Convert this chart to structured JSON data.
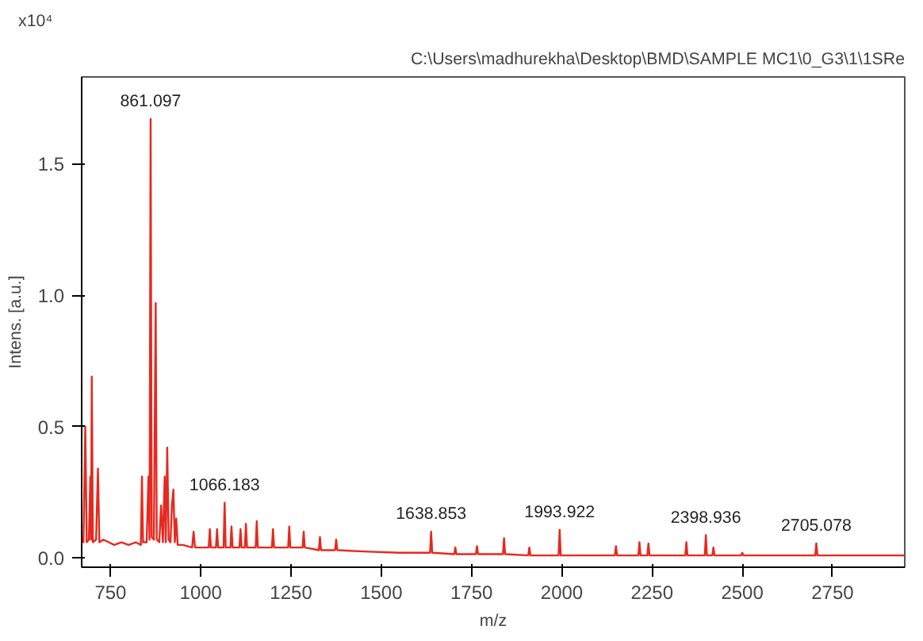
{
  "chart_data": {
    "type": "line",
    "xlabel": "m/z",
    "ylabel": "Intens. [a.u.]",
    "annotations": [
      "C:\\Users\\madhurekha\\Desktop\\BMD\\SAMPLE MC1\\0_G3\\1\\1SRe",
      "x10⁴",
      {
        "text": "861.097",
        "x": 861,
        "y": 1.67
      },
      {
        "text": "1066.183",
        "x": 1066,
        "y": 0.21
      },
      {
        "text": "1638.853",
        "x": 1638,
        "y": 0.1
      },
      {
        "text": "1993.922",
        "x": 1994,
        "y": 0.107
      },
      {
        "text": "2398.936",
        "x": 2399,
        "y": 0.087
      },
      {
        "text": "2705.078",
        "x": 2705,
        "y": 0.056
      }
    ],
    "series": [
      {
        "color": "#e8281e",
        "x": [
          670,
          675,
          680,
          684,
          690,
          694,
          696,
          698,
          701,
          710,
          715,
          719,
          730,
          745,
          760,
          780,
          800,
          820,
          834,
          837,
          840,
          850,
          855,
          858,
          861,
          864,
          870,
          875,
          878,
          885,
          890,
          895,
          900,
          903,
          907,
          911,
          916,
          920,
          924,
          928,
          932,
          936,
          950,
          976,
          980,
          984,
          1000,
          1022,
          1025,
          1028,
          1042,
          1045,
          1048,
          1063,
          1066,
          1069,
          1082,
          1085,
          1088,
          1107,
          1110,
          1113,
          1122,
          1125,
          1128,
          1152,
          1155,
          1158,
          1197,
          1200,
          1203,
          1242,
          1245,
          1248,
          1282,
          1285,
          1288,
          1327,
          1330,
          1333,
          1372,
          1375,
          1378,
          1450,
          1550,
          1635,
          1638,
          1641,
          1702,
          1705,
          1708,
          1762,
          1765,
          1768,
          1837,
          1840,
          1843,
          1907,
          1910,
          1913,
          1991,
          1994,
          1997,
          2147,
          2150,
          2153,
          2212,
          2215,
          2218,
          2237,
          2240,
          2243,
          2342,
          2345,
          2348,
          2396,
          2399,
          2402,
          2417,
          2420,
          2423,
          2497,
          2500,
          2503,
          2600,
          2702,
          2705,
          2708,
          2800,
          2950
        ],
        "values": [
          0.08,
          0.06,
          0.5,
          0.06,
          0.07,
          0.31,
          0.07,
          0.69,
          0.06,
          0.07,
          0.34,
          0.06,
          0.07,
          0.06,
          0.05,
          0.06,
          0.05,
          0.06,
          0.05,
          0.31,
          0.06,
          0.06,
          0.31,
          0.07,
          1.67,
          0.08,
          0.07,
          0.97,
          0.07,
          0.06,
          0.2,
          0.06,
          0.31,
          0.06,
          0.42,
          0.07,
          0.06,
          0.2,
          0.26,
          0.06,
          0.15,
          0.05,
          0.05,
          0.04,
          0.1,
          0.04,
          0.04,
          0.04,
          0.11,
          0.04,
          0.04,
          0.11,
          0.04,
          0.04,
          0.21,
          0.04,
          0.04,
          0.12,
          0.04,
          0.04,
          0.11,
          0.04,
          0.04,
          0.13,
          0.04,
          0.04,
          0.14,
          0.04,
          0.04,
          0.11,
          0.04,
          0.04,
          0.12,
          0.04,
          0.04,
          0.1,
          0.04,
          0.03,
          0.08,
          0.03,
          0.03,
          0.07,
          0.03,
          0.025,
          0.02,
          0.02,
          0.1,
          0.02,
          0.015,
          0.04,
          0.015,
          0.015,
          0.045,
          0.015,
          0.015,
          0.075,
          0.015,
          0.01,
          0.04,
          0.01,
          0.01,
          0.107,
          0.01,
          0.01,
          0.045,
          0.01,
          0.01,
          0.06,
          0.01,
          0.01,
          0.055,
          0.01,
          0.01,
          0.06,
          0.01,
          0.01,
          0.087,
          0.01,
          0.01,
          0.04,
          0.01,
          0.01,
          0.02,
          0.01,
          0.01,
          0.01,
          0.056,
          0.01,
          0.01,
          0.01
        ]
      }
    ],
    "xlim": [
      670,
      2950
    ],
    "ylim": [
      -0.035,
      1.83
    ],
    "xticks": [
      750,
      1000,
      1250,
      1500,
      1750,
      2000,
      2250,
      2500,
      2750
    ],
    "yticks": [
      {
        "value": 0,
        "label": "0.0"
      },
      {
        "value": 0.5,
        "label": "0.5"
      },
      {
        "value": 1,
        "label": "1.0"
      },
      {
        "value": 1.5,
        "label": "1.5"
      }
    ],
    "grid": false
  }
}
